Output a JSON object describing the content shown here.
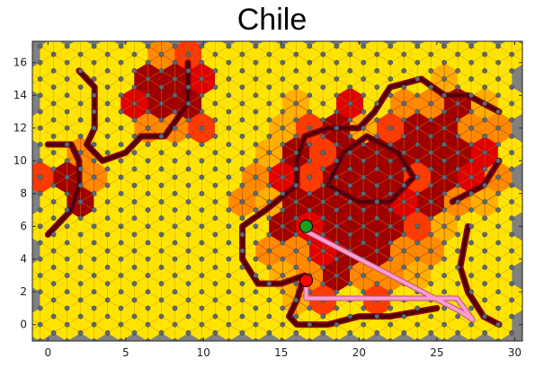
{
  "chart_data": {
    "type": "scatter",
    "title": "Chile",
    "xlabel": "",
    "ylabel": "",
    "xlim": [
      -1,
      30.5
    ],
    "ylim": [
      -1,
      17.3
    ],
    "x_ticks": [
      0,
      5,
      10,
      15,
      20,
      25,
      30
    ],
    "y_ticks": [
      0,
      2,
      4,
      6,
      8,
      10,
      12,
      14,
      16
    ],
    "grid": false,
    "plot_background_color": "#808080",
    "hex_lattice": {
      "x_min": 0.5,
      "x_max": 29.5,
      "y_min": 0,
      "y_max": 16.45,
      "node_color": "#5a6a7a",
      "cell_color": "#ffe400",
      "hot_colors": [
        "#ffb000",
        "#ff8a00",
        "#ff3a00",
        "#e00000",
        "#a00000"
      ],
      "wall_color": "#4d0008"
    },
    "hot_regions": [
      {
        "x": 19.5,
        "y": 7.5,
        "r": 7.5
      },
      {
        "x": 25,
        "y": 10.5,
        "r": 5
      },
      {
        "x": 8,
        "y": 14,
        "r": 3.5
      },
      {
        "x": 1.5,
        "y": 8.5,
        "r": 2.2
      }
    ],
    "walls": [
      [
        [
          0,
          5.5
        ],
        [
          1.5,
          7
        ],
        [
          2,
          8.5
        ],
        [
          2,
          10
        ],
        [
          1.5,
          11
        ],
        [
          0,
          11
        ]
      ],
      [
        [
          2,
          15.5
        ],
        [
          3,
          14.5
        ],
        [
          3,
          12
        ],
        [
          2.5,
          11
        ],
        [
          3.5,
          10
        ],
        [
          5,
          10.5
        ],
        [
          6,
          11.5
        ],
        [
          7.5,
          11.5
        ],
        [
          9,
          13.5
        ],
        [
          9,
          16
        ]
      ],
      [
        [
          16,
          8.5
        ],
        [
          14,
          7
        ],
        [
          12.5,
          6
        ],
        [
          12.5,
          4
        ],
        [
          13.5,
          2.5
        ],
        [
          15,
          2.5
        ],
        [
          16.5,
          3
        ],
        [
          16,
          1.5
        ],
        [
          15.5,
          0.5
        ],
        [
          16,
          0
        ],
        [
          18,
          0
        ],
        [
          20,
          0.5
        ],
        [
          22,
          0.5
        ],
        [
          25,
          1
        ]
      ],
      [
        [
          16,
          8.5
        ],
        [
          16,
          10
        ],
        [
          16.5,
          11.5
        ],
        [
          18,
          12
        ],
        [
          20,
          12
        ],
        [
          21,
          13
        ],
        [
          22,
          14.5
        ],
        [
          24,
          15
        ],
        [
          25.5,
          14
        ],
        [
          27,
          14
        ],
        [
          29,
          13
        ]
      ],
      [
        [
          26,
          7.5
        ],
        [
          28,
          8.5
        ],
        [
          29,
          10
        ]
      ],
      [
        [
          27,
          6
        ],
        [
          26.5,
          3.5
        ],
        [
          27,
          2
        ],
        [
          28,
          0.5
        ],
        [
          29,
          0
        ]
      ],
      [
        [
          18,
          8.5
        ],
        [
          19,
          10.5
        ],
        [
          20.5,
          11.5
        ],
        [
          22.5,
          10.5
        ],
        [
          23.5,
          9
        ],
        [
          22,
          7.5
        ],
        [
          20,
          7.5
        ],
        [
          18,
          8.5
        ]
      ]
    ],
    "path": {
      "color": "#ff9ccf",
      "points": [
        [
          16.6,
          5.7
        ],
        [
          26.5,
          0.8
        ],
        [
          27.3,
          0.3
        ],
        [
          26.3,
          1.6
        ],
        [
          16.6,
          1.6
        ],
        [
          16.6,
          2.4
        ]
      ]
    },
    "markers": [
      {
        "name": "start",
        "x": 16.6,
        "y": 6.0,
        "color": "#1a9e1a"
      },
      {
        "name": "end",
        "x": 16.6,
        "y": 2.7,
        "color": "#ff0000"
      }
    ]
  }
}
